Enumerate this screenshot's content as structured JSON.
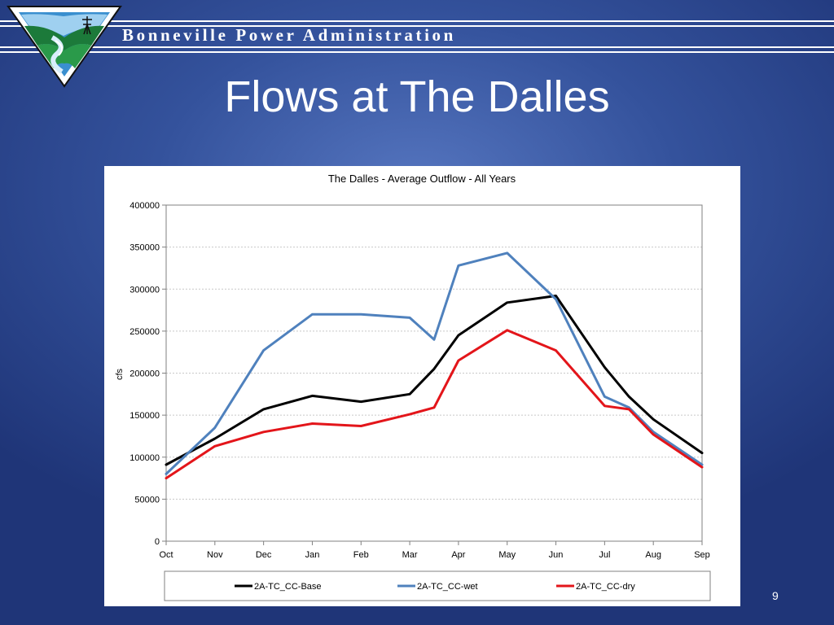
{
  "header": {
    "org_name": "Bonneville Power Administration",
    "logo_name": "bpa-logo"
  },
  "slide": {
    "title": "Flows at The Dalles",
    "number": "9"
  },
  "colors": {
    "background": "#2b4790",
    "base": "#000000",
    "wet": "#4f81bd",
    "dry": "#e3151a",
    "grid": "#c8c8c8"
  },
  "chart_data": {
    "type": "line",
    "title": "The Dalles - Average Outflow - All Years",
    "xlabel": "",
    "ylabel": "cfs",
    "ylim": [
      0,
      400000
    ],
    "yticks": [
      0,
      50000,
      100000,
      150000,
      200000,
      250000,
      300000,
      350000,
      400000
    ],
    "grid": "horizontal dotted",
    "legend_position": "bottom",
    "categories": [
      "Oct",
      "Nov",
      "Dec",
      "Jan",
      "Feb",
      "Mar",
      "Apr",
      "May",
      "Jun",
      "Jul",
      "Aug",
      "Sep"
    ],
    "series": [
      {
        "name": "2A-TC_CC-Base",
        "color": "#000000",
        "x": [
          0,
          1,
          2,
          3,
          4,
          5,
          5.5,
          6,
          7,
          8,
          9,
          9.5,
          10,
          11
        ],
        "values": [
          91000,
          122000,
          157000,
          173000,
          166000,
          175000,
          205000,
          245000,
          284000,
          292000,
          207000,
          172000,
          145000,
          105000
        ]
      },
      {
        "name": "2A-TC_CC-wet",
        "color": "#4f81bd",
        "x": [
          0,
          1,
          2,
          3,
          4,
          5,
          5.5,
          6,
          7,
          8,
          9,
          9.5,
          10,
          11
        ],
        "values": [
          80000,
          135000,
          227000,
          270000,
          270000,
          266000,
          240000,
          328000,
          343000,
          288000,
          172000,
          159000,
          130000,
          91000
        ]
      },
      {
        "name": "2A-TC_CC-dry",
        "color": "#e3151a",
        "x": [
          0,
          1,
          2,
          3,
          4,
          5,
          5.5,
          6,
          7,
          8,
          9,
          9.5,
          10,
          11
        ],
        "values": [
          75000,
          113000,
          130000,
          140000,
          137000,
          151000,
          159000,
          215000,
          251000,
          227000,
          161000,
          157000,
          127000,
          88000
        ]
      }
    ]
  }
}
